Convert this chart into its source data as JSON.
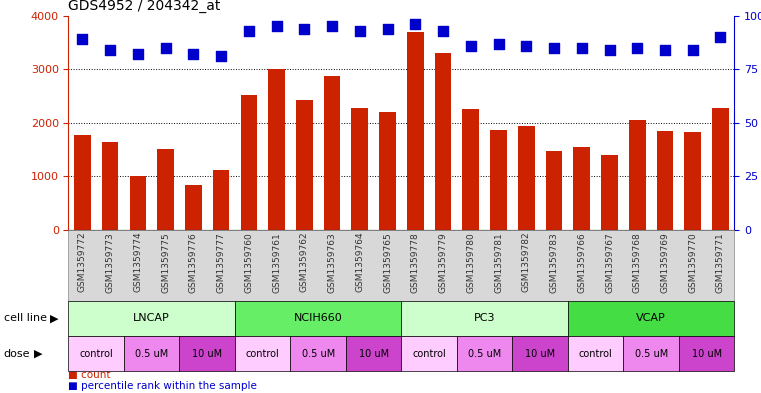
{
  "title": "GDS4952 / 204342_at",
  "samples": [
    "GSM1359772",
    "GSM1359773",
    "GSM1359774",
    "GSM1359775",
    "GSM1359776",
    "GSM1359777",
    "GSM1359760",
    "GSM1359761",
    "GSM1359762",
    "GSM1359763",
    "GSM1359764",
    "GSM1359765",
    "GSM1359778",
    "GSM1359779",
    "GSM1359780",
    "GSM1359781",
    "GSM1359782",
    "GSM1359783",
    "GSM1359766",
    "GSM1359767",
    "GSM1359768",
    "GSM1359769",
    "GSM1359770",
    "GSM1359771"
  ],
  "counts": [
    1780,
    1650,
    1000,
    1520,
    830,
    1120,
    2520,
    3000,
    2420,
    2870,
    2270,
    2200,
    3700,
    3310,
    2260,
    1870,
    1940,
    1470,
    1540,
    1390,
    2060,
    1840,
    1820,
    2270
  ],
  "percentiles": [
    89,
    84,
    82,
    85,
    82,
    81,
    93,
    95,
    94,
    95,
    93,
    94,
    96,
    93,
    86,
    87,
    86,
    85,
    85,
    84,
    85,
    84,
    84,
    90
  ],
  "bar_color": "#cc2200",
  "dot_color": "#0000cc",
  "ylim_left": [
    0,
    4000
  ],
  "ylim_right": [
    0,
    100
  ],
  "yticks_left": [
    0,
    1000,
    2000,
    3000,
    4000
  ],
  "yticks_right": [
    0,
    25,
    50,
    75,
    100
  ],
  "cell_lines": [
    {
      "name": "LNCAP",
      "start": 0,
      "end": 6,
      "color": "#ccffcc"
    },
    {
      "name": "NCIH660",
      "start": 6,
      "end": 12,
      "color": "#66ee66"
    },
    {
      "name": "PC3",
      "start": 12,
      "end": 18,
      "color": "#ccffcc"
    },
    {
      "name": "VCAP",
      "start": 18,
      "end": 24,
      "color": "#44dd44"
    }
  ],
  "doses": [
    {
      "name": "control",
      "start": 0,
      "end": 2,
      "color": "#ffccff"
    },
    {
      "name": "0.5 uM",
      "start": 2,
      "end": 4,
      "color": "#ee88ee"
    },
    {
      "name": "10 uM",
      "start": 4,
      "end": 6,
      "color": "#cc44cc"
    },
    {
      "name": "control",
      "start": 6,
      "end": 8,
      "color": "#ffccff"
    },
    {
      "name": "0.5 uM",
      "start": 8,
      "end": 10,
      "color": "#ee88ee"
    },
    {
      "name": "10 uM",
      "start": 10,
      "end": 12,
      "color": "#cc44cc"
    },
    {
      "name": "control",
      "start": 12,
      "end": 14,
      "color": "#ffccff"
    },
    {
      "name": "0.5 uM",
      "start": 14,
      "end": 16,
      "color": "#ee88ee"
    },
    {
      "name": "10 uM",
      "start": 16,
      "end": 18,
      "color": "#cc44cc"
    },
    {
      "name": "control",
      "start": 18,
      "end": 20,
      "color": "#ffccff"
    },
    {
      "name": "0.5 uM",
      "start": 20,
      "end": 22,
      "color": "#ee88ee"
    },
    {
      "name": "10 uM",
      "start": 22,
      "end": 24,
      "color": "#cc44cc"
    }
  ],
  "bar_width": 0.6,
  "dot_size": 55,
  "label_row1": "cell line",
  "label_row2": "dose",
  "tick_color_left": "#cc2200",
  "tick_color_right": "#0000cc",
  "legend_count": "count",
  "legend_percentile": "percentile rank within the sample",
  "sample_label_color": "#333333",
  "gray_bg": "#d8d8d8"
}
